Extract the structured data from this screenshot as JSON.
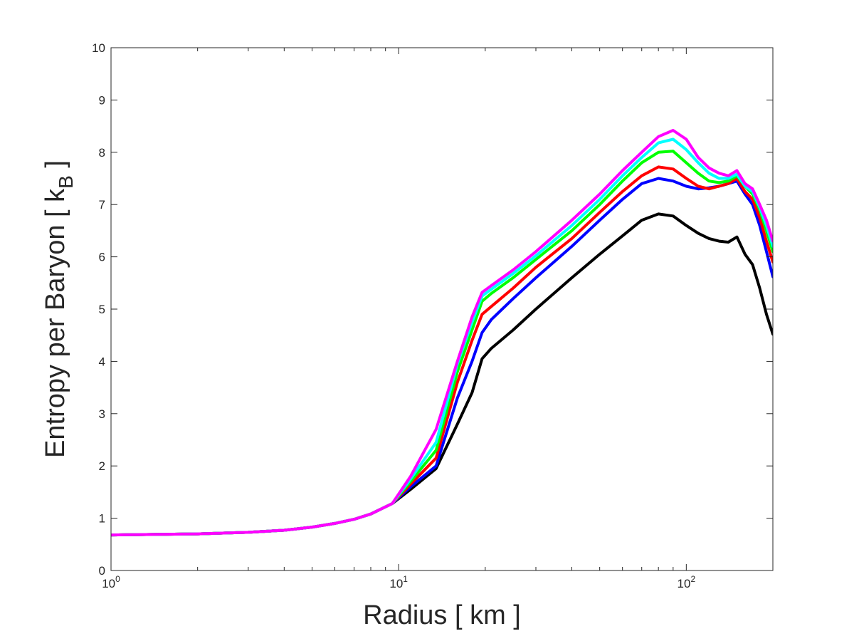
{
  "chart_data": {
    "type": "line",
    "xscale": "log",
    "xlim": [
      1,
      200
    ],
    "ylim": [
      0,
      10
    ],
    "xlabel": "Radius [ km ]",
    "ylabel_main": "Entropy per Baryon [ k",
    "ylabel_sub": "B",
    "ylabel_end": " ]",
    "yticks": [
      "0",
      "1",
      "2",
      "3",
      "4",
      "5",
      "6",
      "7",
      "8",
      "9",
      "10"
    ],
    "xticks": [
      {
        "value": 1,
        "base": "10",
        "exp": "0"
      },
      {
        "value": 10,
        "base": "10",
        "exp": "1"
      },
      {
        "value": 100,
        "base": "10",
        "exp": "2"
      }
    ],
    "grid": false,
    "series": [
      {
        "color": "#000000",
        "points": [
          [
            1,
            0.68
          ],
          [
            2,
            0.7
          ],
          [
            3,
            0.73
          ],
          [
            4,
            0.77
          ],
          [
            5,
            0.83
          ],
          [
            6,
            0.9
          ],
          [
            7,
            0.98
          ],
          [
            8,
            1.08
          ],
          [
            9.5,
            1.28
          ],
          [
            11,
            1.55
          ],
          [
            13.5,
            1.95
          ],
          [
            16,
            2.8
          ],
          [
            18,
            3.4
          ],
          [
            19.5,
            4.05
          ],
          [
            21,
            4.25
          ],
          [
            25,
            4.6
          ],
          [
            30,
            5.0
          ],
          [
            40,
            5.6
          ],
          [
            50,
            6.05
          ],
          [
            60,
            6.4
          ],
          [
            70,
            6.7
          ],
          [
            80,
            6.82
          ],
          [
            90,
            6.78
          ],
          [
            100,
            6.6
          ],
          [
            110,
            6.45
          ],
          [
            120,
            6.35
          ],
          [
            130,
            6.3
          ],
          [
            140,
            6.28
          ],
          [
            150,
            6.38
          ],
          [
            160,
            6.05
          ],
          [
            170,
            5.85
          ],
          [
            180,
            5.4
          ],
          [
            190,
            4.9
          ],
          [
            200,
            4.52
          ]
        ]
      },
      {
        "color": "#0000ff",
        "points": [
          [
            1,
            0.68
          ],
          [
            2,
            0.7
          ],
          [
            3,
            0.73
          ],
          [
            4,
            0.77
          ],
          [
            5,
            0.83
          ],
          [
            6,
            0.9
          ],
          [
            7,
            0.98
          ],
          [
            8,
            1.08
          ],
          [
            9.5,
            1.28
          ],
          [
            11,
            1.6
          ],
          [
            13.5,
            2.0
          ],
          [
            16,
            3.3
          ],
          [
            18,
            4.0
          ],
          [
            19.5,
            4.55
          ],
          [
            21,
            4.8
          ],
          [
            25,
            5.2
          ],
          [
            30,
            5.6
          ],
          [
            40,
            6.2
          ],
          [
            50,
            6.7
          ],
          [
            60,
            7.1
          ],
          [
            70,
            7.4
          ],
          [
            80,
            7.5
          ],
          [
            90,
            7.45
          ],
          [
            100,
            7.35
          ],
          [
            110,
            7.3
          ],
          [
            120,
            7.32
          ],
          [
            130,
            7.35
          ],
          [
            140,
            7.4
          ],
          [
            150,
            7.45
          ],
          [
            160,
            7.2
          ],
          [
            170,
            7.0
          ],
          [
            180,
            6.6
          ],
          [
            190,
            6.1
          ],
          [
            200,
            5.62
          ]
        ]
      },
      {
        "color": "#ff0000",
        "points": [
          [
            1,
            0.68
          ],
          [
            2,
            0.7
          ],
          [
            3,
            0.73
          ],
          [
            4,
            0.77
          ],
          [
            5,
            0.83
          ],
          [
            6,
            0.9
          ],
          [
            7,
            0.98
          ],
          [
            8,
            1.08
          ],
          [
            9.5,
            1.28
          ],
          [
            11,
            1.65
          ],
          [
            13.5,
            2.15
          ],
          [
            16,
            3.6
          ],
          [
            18,
            4.4
          ],
          [
            19.5,
            4.9
          ],
          [
            21,
            5.05
          ],
          [
            25,
            5.4
          ],
          [
            30,
            5.8
          ],
          [
            40,
            6.35
          ],
          [
            50,
            6.85
          ],
          [
            60,
            7.25
          ],
          [
            70,
            7.55
          ],
          [
            80,
            7.72
          ],
          [
            90,
            7.68
          ],
          [
            100,
            7.5
          ],
          [
            110,
            7.35
          ],
          [
            120,
            7.3
          ],
          [
            130,
            7.35
          ],
          [
            140,
            7.4
          ],
          [
            150,
            7.5
          ],
          [
            160,
            7.25
          ],
          [
            170,
            7.1
          ],
          [
            180,
            6.75
          ],
          [
            190,
            6.3
          ],
          [
            200,
            5.9
          ]
        ]
      },
      {
        "color": "#00ff00",
        "points": [
          [
            1,
            0.68
          ],
          [
            2,
            0.7
          ],
          [
            3,
            0.73
          ],
          [
            4,
            0.77
          ],
          [
            5,
            0.83
          ],
          [
            6,
            0.9
          ],
          [
            7,
            0.98
          ],
          [
            8,
            1.08
          ],
          [
            9.5,
            1.28
          ],
          [
            11,
            1.7
          ],
          [
            13.5,
            2.3
          ],
          [
            16,
            3.8
          ],
          [
            18,
            4.6
          ],
          [
            19.5,
            5.15
          ],
          [
            21,
            5.3
          ],
          [
            25,
            5.6
          ],
          [
            30,
            5.95
          ],
          [
            40,
            6.5
          ],
          [
            50,
            7.0
          ],
          [
            60,
            7.45
          ],
          [
            70,
            7.8
          ],
          [
            80,
            8.0
          ],
          [
            90,
            8.02
          ],
          [
            100,
            7.8
          ],
          [
            110,
            7.6
          ],
          [
            120,
            7.45
          ],
          [
            130,
            7.42
          ],
          [
            140,
            7.45
          ],
          [
            150,
            7.55
          ],
          [
            160,
            7.35
          ],
          [
            170,
            7.2
          ],
          [
            180,
            6.9
          ],
          [
            190,
            6.5
          ],
          [
            200,
            6.1
          ]
        ]
      },
      {
        "color": "#00ffff",
        "points": [
          [
            1,
            0.68
          ],
          [
            2,
            0.7
          ],
          [
            3,
            0.73
          ],
          [
            4,
            0.77
          ],
          [
            5,
            0.83
          ],
          [
            6,
            0.9
          ],
          [
            7,
            0.98
          ],
          [
            8,
            1.08
          ],
          [
            9.5,
            1.28
          ],
          [
            11,
            1.75
          ],
          [
            13.5,
            2.45
          ],
          [
            16,
            3.95
          ],
          [
            18,
            4.75
          ],
          [
            19.5,
            5.25
          ],
          [
            21,
            5.38
          ],
          [
            25,
            5.68
          ],
          [
            30,
            6.02
          ],
          [
            40,
            6.6
          ],
          [
            50,
            7.1
          ],
          [
            60,
            7.55
          ],
          [
            70,
            7.9
          ],
          [
            80,
            8.18
          ],
          [
            90,
            8.25
          ],
          [
            100,
            8.05
          ],
          [
            110,
            7.8
          ],
          [
            120,
            7.6
          ],
          [
            130,
            7.5
          ],
          [
            140,
            7.5
          ],
          [
            150,
            7.58
          ],
          [
            160,
            7.35
          ],
          [
            170,
            7.25
          ],
          [
            180,
            6.95
          ],
          [
            190,
            6.6
          ],
          [
            200,
            6.2
          ]
        ]
      },
      {
        "color": "#ff00ff",
        "points": [
          [
            1,
            0.68
          ],
          [
            2,
            0.7
          ],
          [
            3,
            0.73
          ],
          [
            4,
            0.77
          ],
          [
            5,
            0.83
          ],
          [
            6,
            0.9
          ],
          [
            7,
            0.98
          ],
          [
            8,
            1.08
          ],
          [
            9.5,
            1.28
          ],
          [
            11,
            1.8
          ],
          [
            13.5,
            2.7
          ],
          [
            16,
            4.0
          ],
          [
            18,
            4.85
          ],
          [
            19.5,
            5.32
          ],
          [
            21,
            5.45
          ],
          [
            25,
            5.75
          ],
          [
            30,
            6.1
          ],
          [
            40,
            6.7
          ],
          [
            50,
            7.2
          ],
          [
            60,
            7.65
          ],
          [
            70,
            8.0
          ],
          [
            80,
            8.3
          ],
          [
            90,
            8.42
          ],
          [
            100,
            8.25
          ],
          [
            110,
            7.9
          ],
          [
            120,
            7.7
          ],
          [
            130,
            7.6
          ],
          [
            140,
            7.55
          ],
          [
            150,
            7.65
          ],
          [
            160,
            7.4
          ],
          [
            170,
            7.3
          ],
          [
            180,
            7.0
          ],
          [
            190,
            6.7
          ],
          [
            200,
            6.3
          ]
        ]
      }
    ]
  }
}
